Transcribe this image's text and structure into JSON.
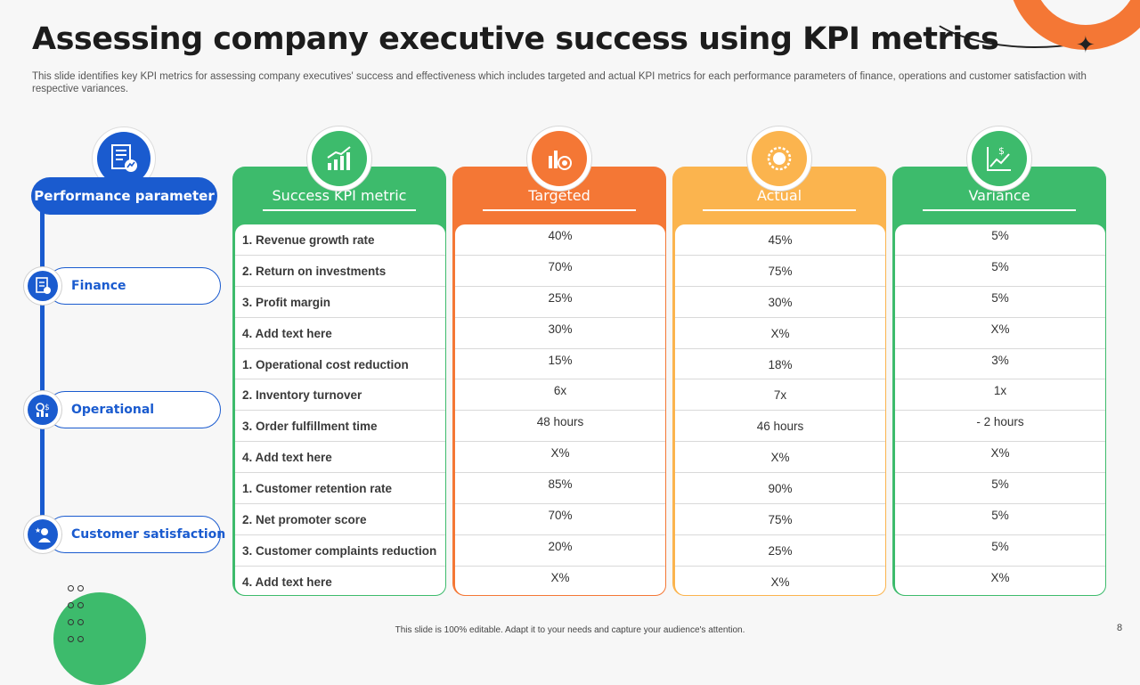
{
  "slide": {
    "title": "Assessing company executive success using KPI metrics",
    "subtitle": "This slide identifies key KPI metrics for assessing company executives' success and effectiveness which includes targeted and actual KPI metrics for each performance parameters of finance, operations and customer satisfaction with respective variances.",
    "footer": "This slide is 100% editable. Adapt it to your needs and capture your audience's attention.",
    "page_number": "8"
  },
  "parameters": {
    "header": "Performance parameter",
    "items": [
      {
        "label": "Finance",
        "icon": "finance-report-icon"
      },
      {
        "label": "Operational",
        "icon": "operations-icon"
      },
      {
        "label": "Customer satisfaction",
        "icon": "customer-icon"
      }
    ]
  },
  "colors": {
    "blue": "#1a5bcf",
    "green": "#3dbb6c",
    "orange": "#f47735",
    "yellow": "#fbb44e"
  },
  "table": {
    "columns": [
      {
        "header": "Success KPI metric",
        "color": "#3dbb6c",
        "icon": "growth-chart-icon"
      },
      {
        "header": "Targeted",
        "color": "#f47735",
        "icon": "target-chart-icon"
      },
      {
        "header": "Actual",
        "color": "#fbb44e",
        "icon": "actual-badge-icon"
      },
      {
        "header": "Variance",
        "color": "#3dbb6c",
        "icon": "variance-chart-icon"
      }
    ],
    "rows": [
      {
        "metric": "1. Revenue growth rate",
        "targeted": "40%",
        "actual": "45%",
        "variance": "5%"
      },
      {
        "metric": "2. Return on investments",
        "targeted": "70%",
        "actual": "75%",
        "variance": "5%"
      },
      {
        "metric": "3. Profit margin",
        "targeted": "25%",
        "actual": "30%",
        "variance": "5%"
      },
      {
        "metric": "4. Add text here",
        "targeted": "30%",
        "actual": "X%",
        "variance": "X%"
      },
      {
        "metric": "1. Operational cost reduction",
        "targeted": "15%",
        "actual": "18%",
        "variance": "3%"
      },
      {
        "metric": "2. Inventory turnover",
        "targeted": "6x",
        "actual": "7x",
        "variance": "1x"
      },
      {
        "metric": "3. Order fulfillment time",
        "targeted": "48 hours",
        "actual": "46 hours",
        "variance": "- 2 hours"
      },
      {
        "metric": "4. Add text here",
        "targeted": "X%",
        "actual": "X%",
        "variance": "X%"
      },
      {
        "metric": "1. Customer retention rate",
        "targeted": "85%",
        "actual": "90%",
        "variance": "5%"
      },
      {
        "metric": "2. Net promoter score",
        "targeted": "70%",
        "actual": "75%",
        "variance": "5%"
      },
      {
        "metric": "3. Customer complaints reduction",
        "targeted": "20%",
        "actual": "25%",
        "variance": "5%"
      },
      {
        "metric": "4. Add text here",
        "targeted": "X%",
        "actual": "X%",
        "variance": "X%"
      }
    ]
  }
}
